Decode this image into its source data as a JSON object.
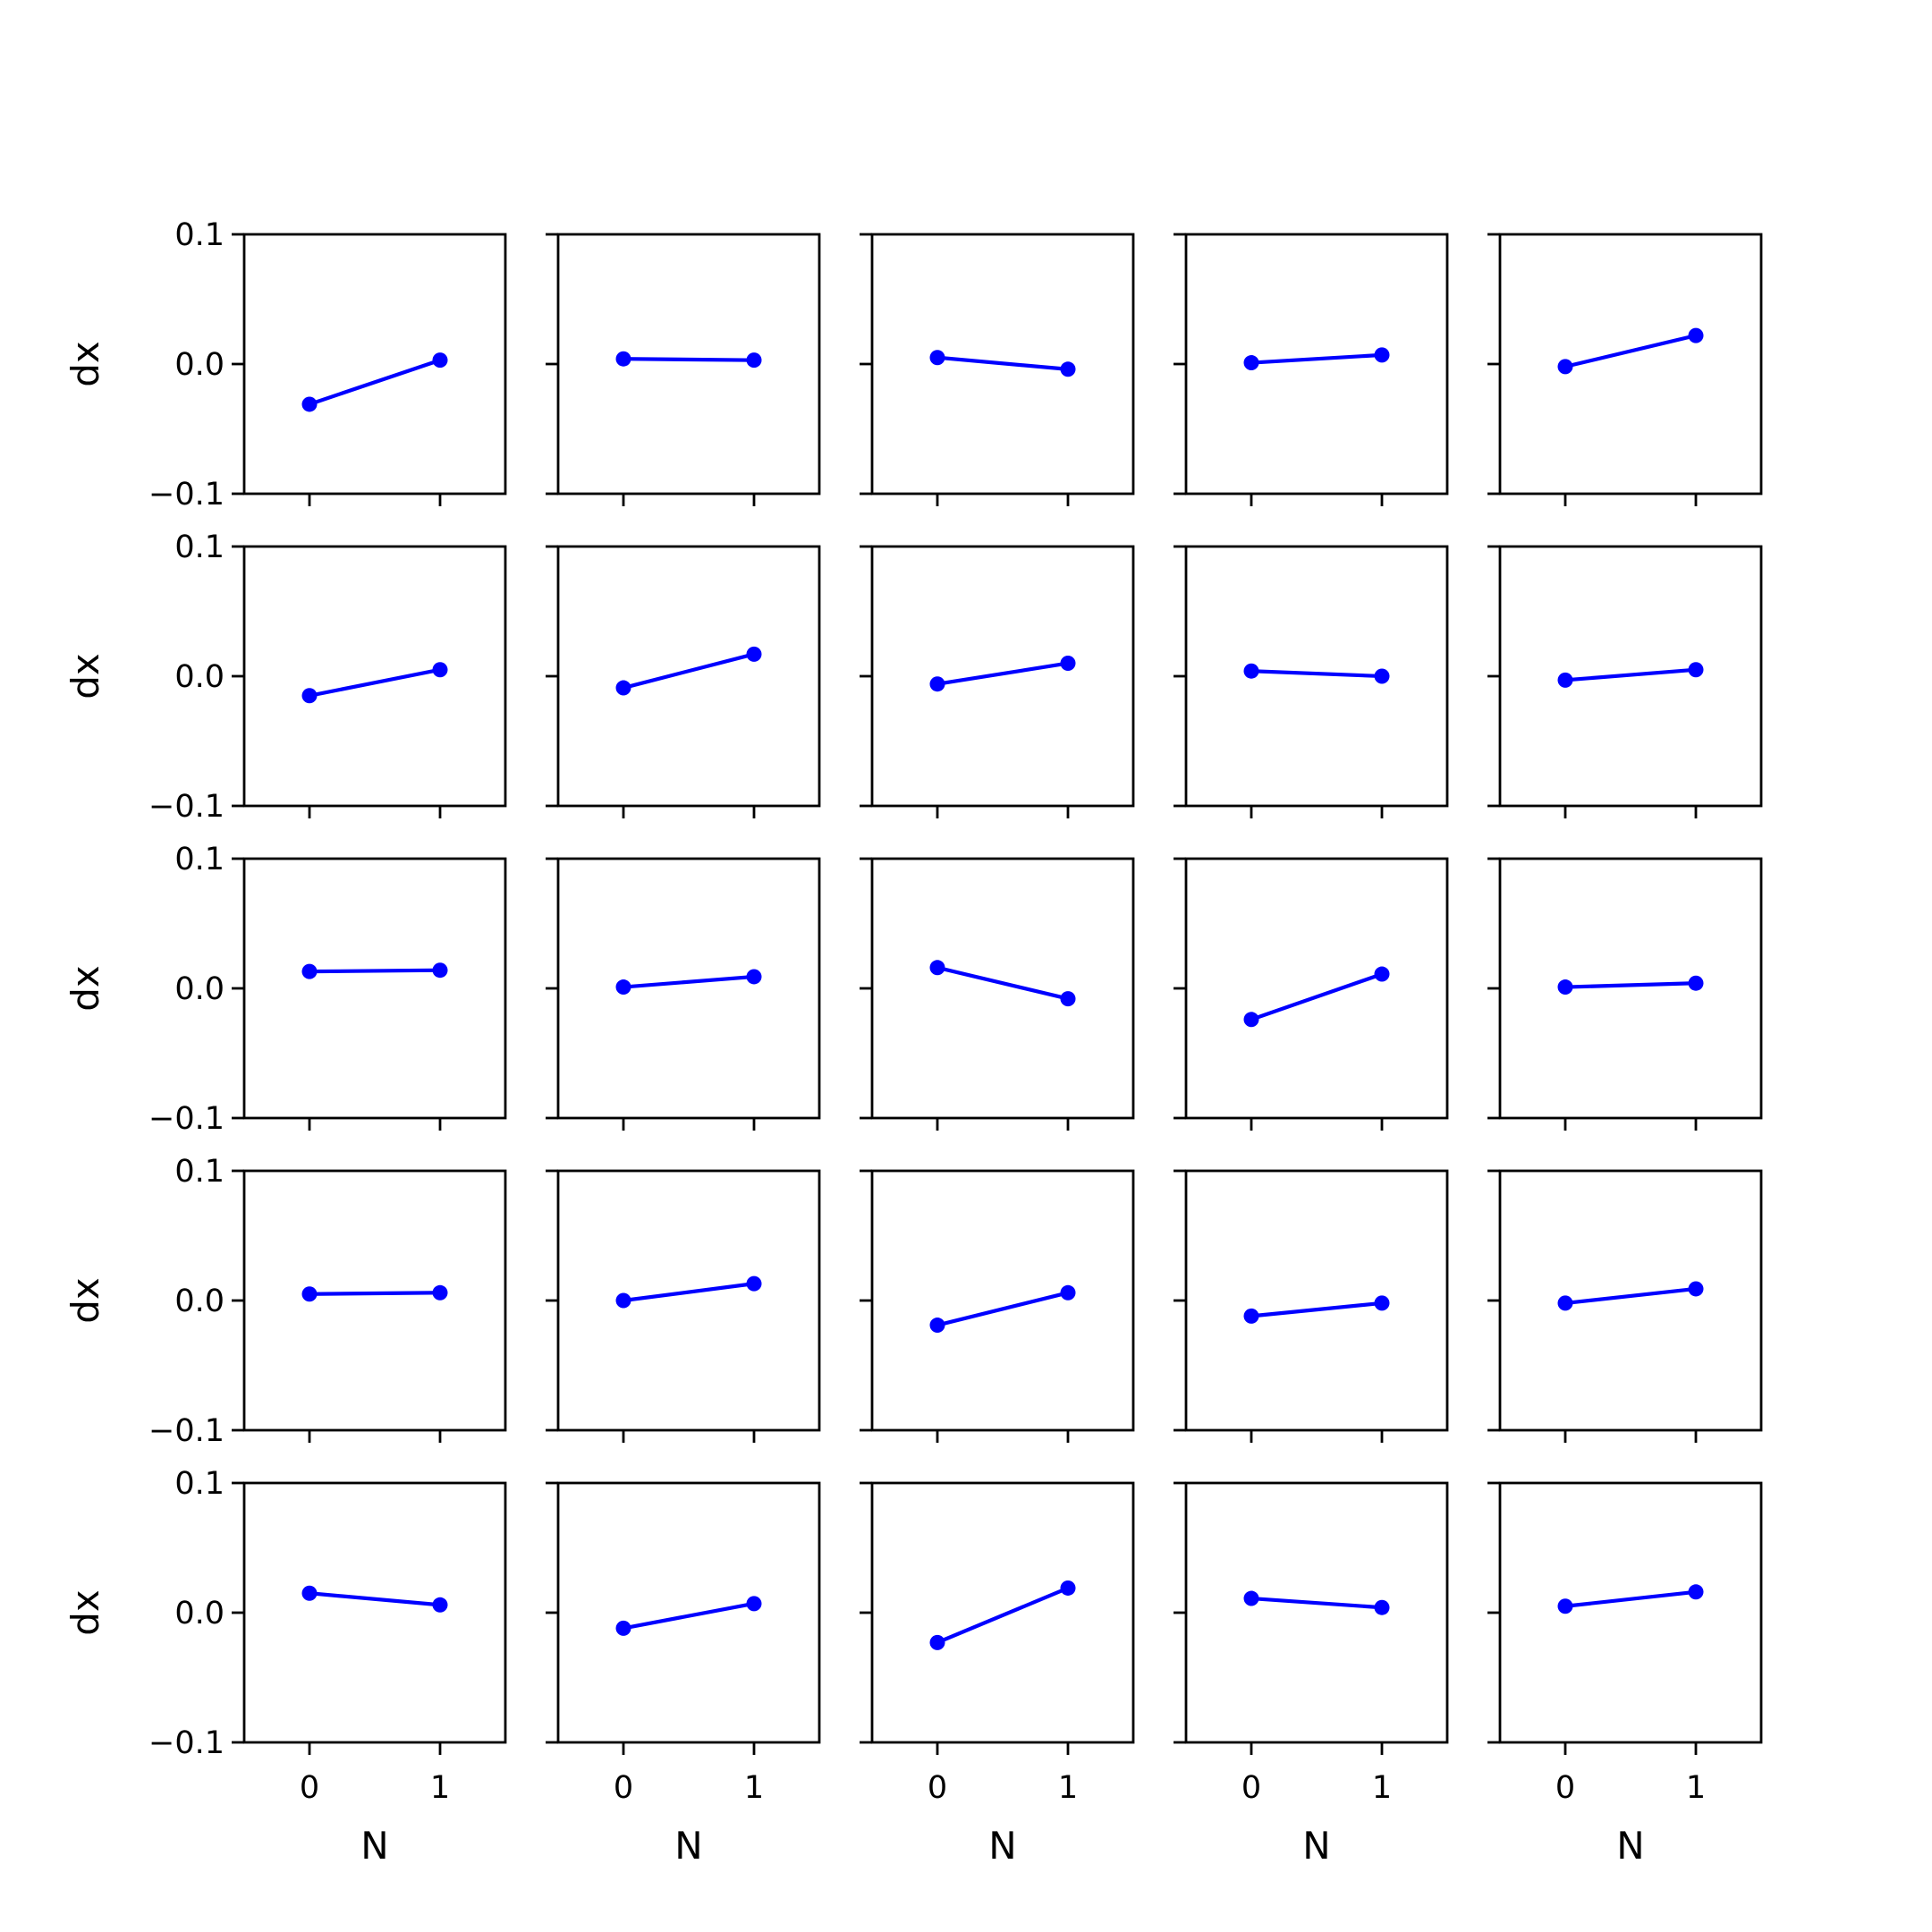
{
  "figure": {
    "rows": 5,
    "cols": 5,
    "line_color": "#0000ff"
  },
  "chart_data": {
    "type": "line",
    "layout": "5x5 grid of subplots, shared axes",
    "xlabel": "N",
    "ylabel": "dx",
    "x": [
      0,
      1
    ],
    "x_ticks": [
      "0",
      "1"
    ],
    "xlim": [
      -0.5,
      1.5
    ],
    "y_ticks": [
      "0.1",
      "0.0",
      "−0.1"
    ],
    "y_tick_values": [
      0.1,
      0.0,
      -0.1
    ],
    "ylim": [
      -0.1,
      0.1
    ],
    "grid": false,
    "markers": "filled circles",
    "panels": [
      [
        [
          -0.031,
          0.003
        ],
        [
          0.004,
          0.003
        ],
        [
          0.005,
          -0.004
        ],
        [
          0.001,
          0.007
        ],
        [
          -0.002,
          0.022
        ]
      ],
      [
        [
          -0.015,
          0.005
        ],
        [
          -0.009,
          0.017
        ],
        [
          -0.006,
          0.01
        ],
        [
          0.004,
          0.0
        ],
        [
          -0.003,
          0.005
        ]
      ],
      [
        [
          0.013,
          0.014
        ],
        [
          0.001,
          0.009
        ],
        [
          0.016,
          -0.008
        ],
        [
          -0.024,
          0.011
        ],
        [
          0.001,
          0.004
        ]
      ],
      [
        [
          0.005,
          0.006
        ],
        [
          0.0,
          0.013
        ],
        [
          -0.019,
          0.006
        ],
        [
          -0.012,
          -0.002
        ],
        [
          -0.002,
          0.009
        ]
      ],
      [
        [
          0.015,
          0.006
        ],
        [
          -0.012,
          0.007
        ],
        [
          -0.023,
          0.019
        ],
        [
          0.011,
          0.004
        ],
        [
          0.005,
          0.016
        ]
      ]
    ]
  }
}
